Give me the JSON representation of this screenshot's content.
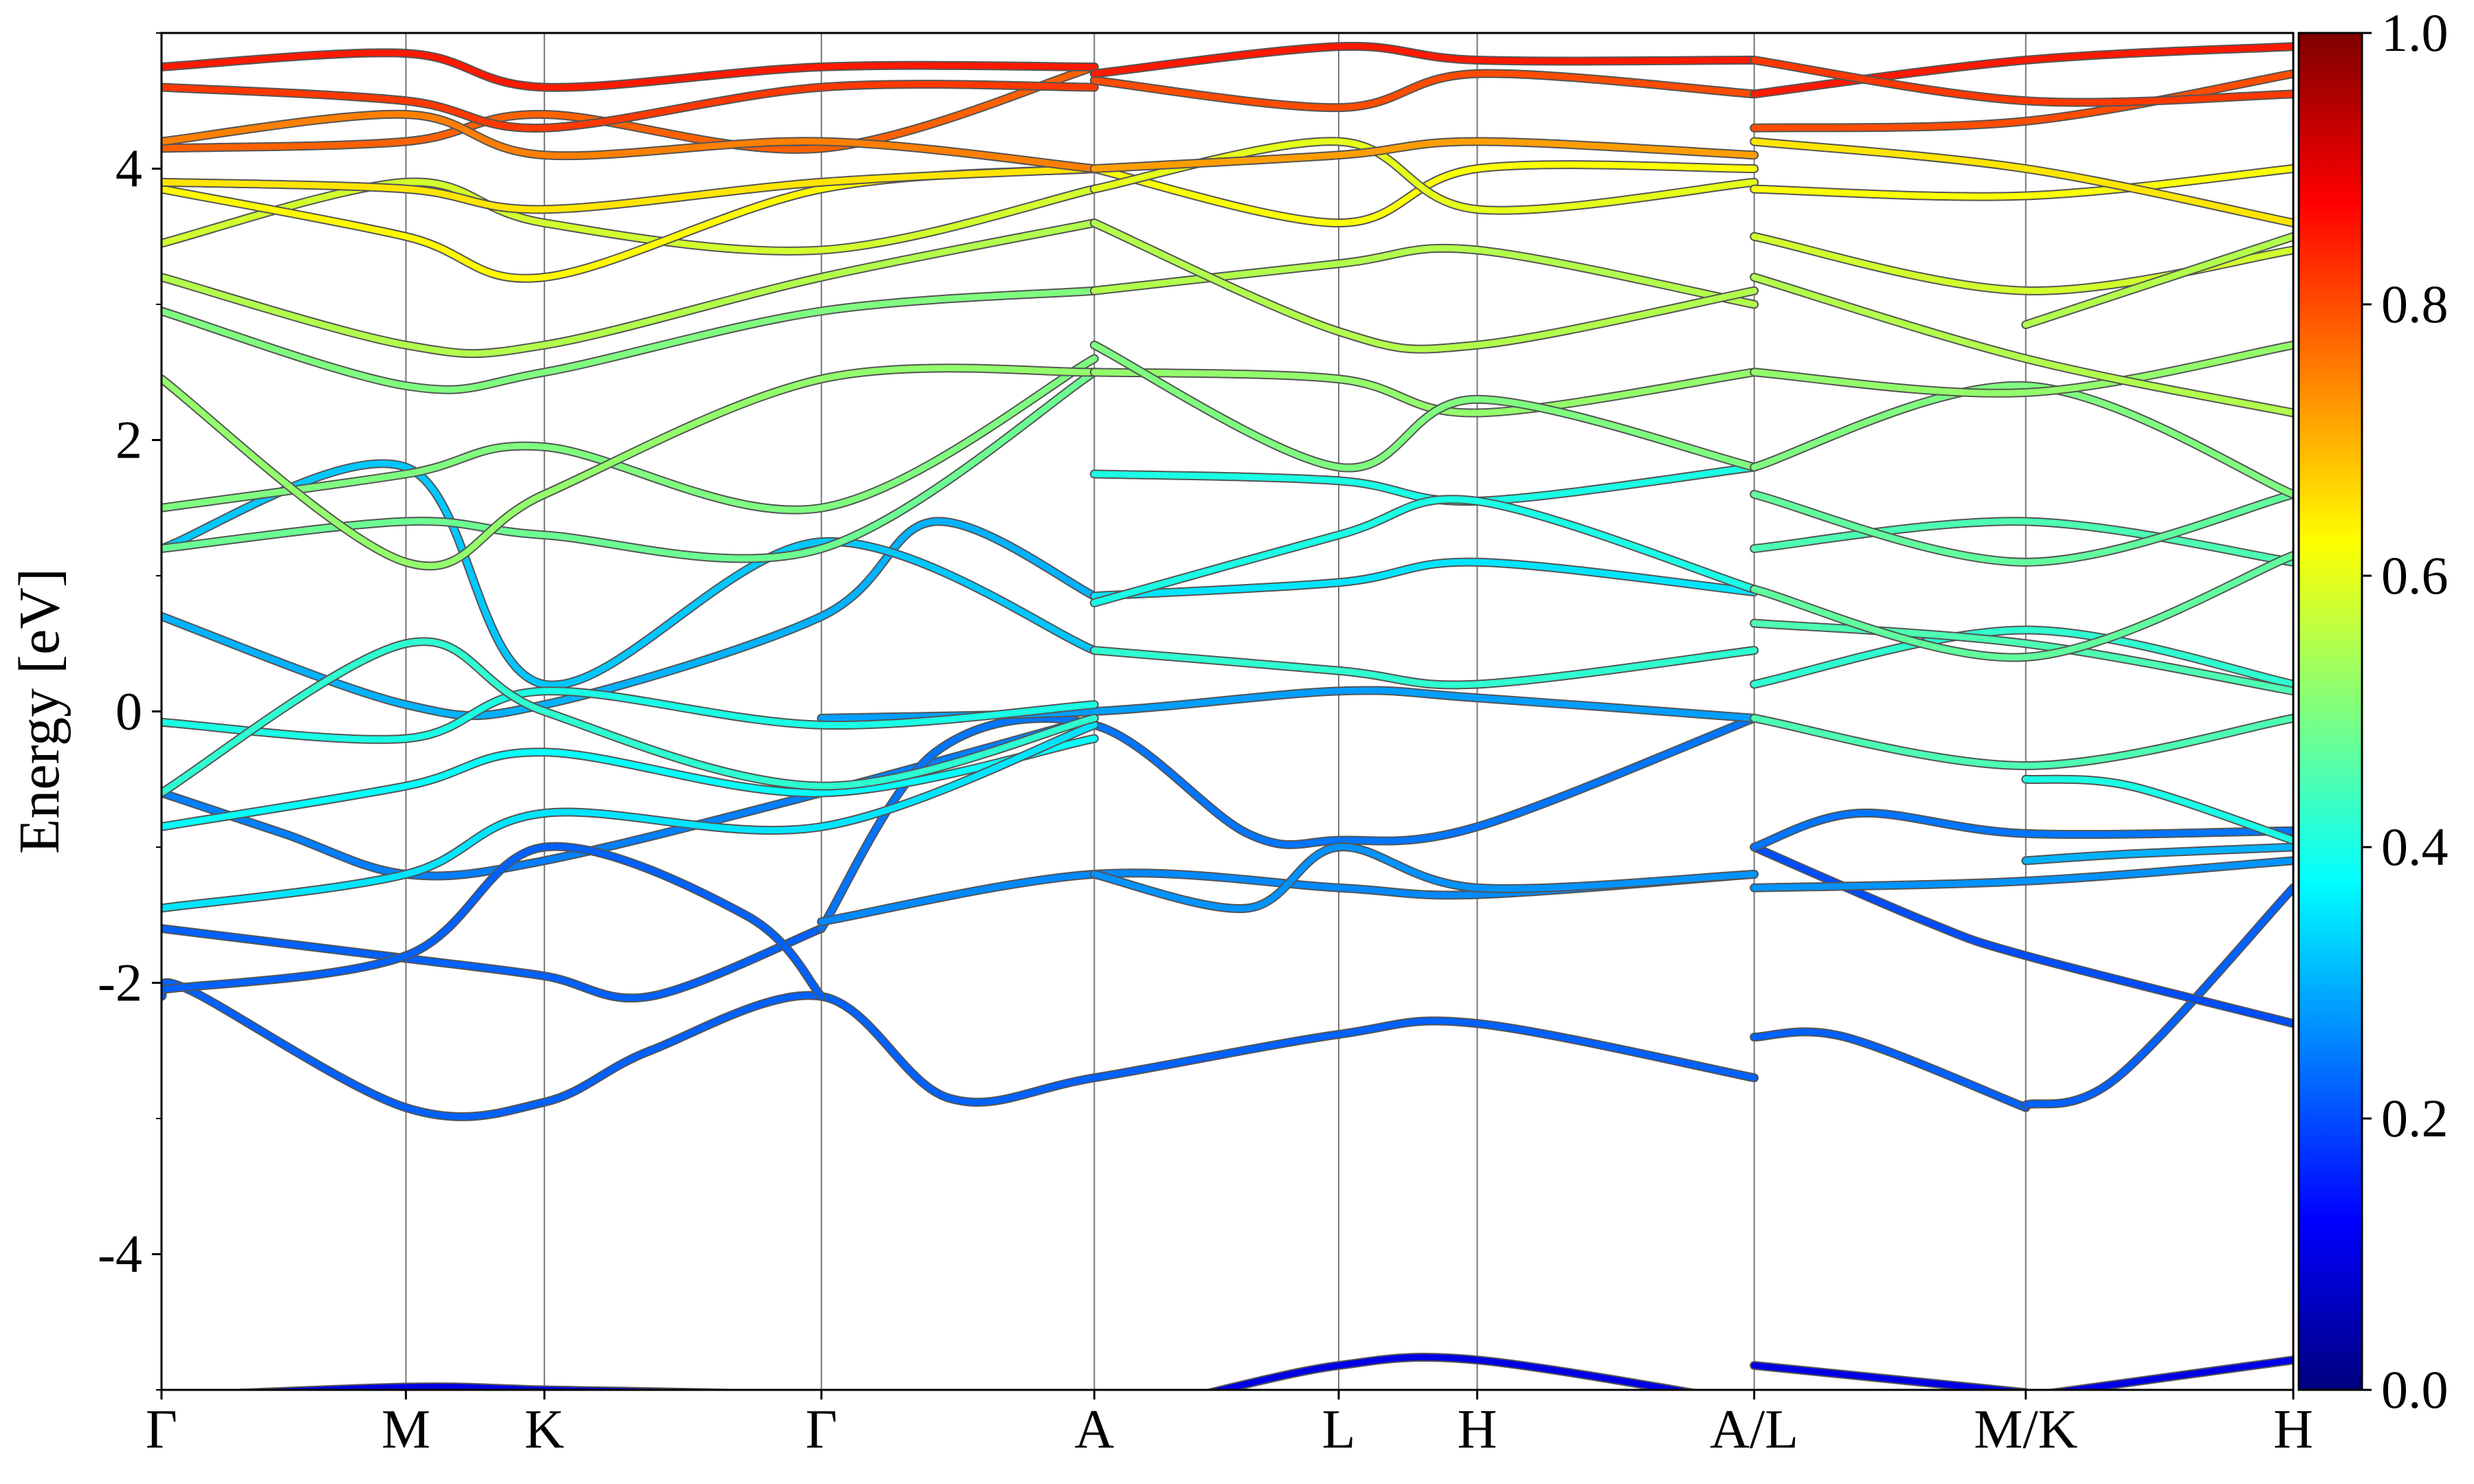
{
  "chart_data": {
    "type": "line",
    "title": "",
    "xlabel": "",
    "ylabel": "Energy [eV]",
    "ylim": [
      -5,
      5
    ],
    "grid": false,
    "yticks": [
      -4,
      -2,
      0,
      2,
      4
    ],
    "yticks_minor": [
      -5,
      -3,
      -1,
      1,
      3,
      5
    ],
    "ytick_labels": [
      "-4",
      "-2",
      "0",
      "2",
      "4"
    ],
    "xlim": [
      0,
      15.7
    ],
    "kpoints": [
      {
        "label": "Γ",
        "x": 0
      },
      {
        "label": "M",
        "x": 1.8
      },
      {
        "label": "K",
        "x": 2.82
      },
      {
        "label": "Γ",
        "x": 4.86
      },
      {
        "label": "A",
        "x": 6.87
      },
      {
        "label": "L",
        "x": 8.67
      },
      {
        "label": "H",
        "x": 9.69
      },
      {
        "label": "A/L",
        "x": 11.73
      },
      {
        "label": "M/K",
        "x": 13.73
      },
      {
        "label": "H",
        "x": 15.7
      }
    ],
    "colorbar": {
      "min": 0.0,
      "max": 1.0,
      "ticks": [
        0.0,
        0.2,
        0.4,
        0.6,
        0.8,
        1.0
      ],
      "tick_labels": [
        "0.0",
        "0.2",
        "0.4",
        "0.6",
        "0.8",
        "1.0"
      ],
      "colormap": "jet",
      "colors": [
        "#00007f",
        "#0000ff",
        "#007fff",
        "#00ffff",
        "#7fff7f",
        "#ffff00",
        "#ff7f00",
        "#ff0000",
        "#7f0000"
      ]
    },
    "series": [
      {
        "x": [
          0,
          1.8,
          2.82,
          4.86,
          6.87
        ],
        "y": [
          -5.05,
          -4.98,
          -5.0,
          -5.05,
          -5.2
        ],
        "c": 0.1
      },
      {
        "x": [
          7.6,
          8.67,
          9.69,
          11.73
        ],
        "y": [
          -5.05,
          -4.82,
          -4.78,
          -5.1
        ],
        "c": 0.1
      },
      {
        "x": [
          11.73,
          13.73
        ],
        "y": [
          -4.82,
          -5.02
        ],
        "c": 0.1
      },
      {
        "x": [
          13.73,
          15.7
        ],
        "y": [
          -5.05,
          -4.78
        ],
        "c": 0.1
      },
      {
        "x": [
          0,
          0.2,
          1.8,
          2.82,
          3.6,
          4.86,
          5.8,
          6.87,
          8.67,
          9.69,
          11.73
        ],
        "y": [
          -2.1,
          -2.05,
          -2.92,
          -2.88,
          -2.5,
          -2.1,
          -2.85,
          -2.7,
          -2.38,
          -2.3,
          -2.7
        ],
        "c": 0.22
      },
      {
        "x": [
          11.73,
          12.4,
          13.73
        ],
        "y": [
          -2.4,
          -2.4,
          -2.92
        ],
        "c": 0.22
      },
      {
        "x": [
          13.73,
          14.4,
          15.7
        ],
        "y": [
          -2.9,
          -2.7,
          -1.3
        ],
        "c": 0.22
      },
      {
        "x": [
          11.73,
          13.0,
          13.73,
          15.7
        ],
        "y": [
          -1.0,
          -1.55,
          -1.8,
          -2.3
        ],
        "c": 0.2
      },
      {
        "x": [
          0,
          1.8,
          2.82,
          3.6,
          4.86
        ],
        "y": [
          -1.6,
          -1.82,
          -1.95,
          -2.1,
          -1.6
        ],
        "c": 0.22
      },
      {
        "x": [
          0,
          0.9,
          1.8,
          2.82,
          4.86,
          6.87
        ],
        "y": [
          -0.6,
          -0.9,
          -1.2,
          -1.1,
          -0.6,
          -0.05
        ],
        "c": 0.25
      },
      {
        "x": [
          0,
          1.8,
          2.82,
          4.3,
          4.86
        ],
        "y": [
          -2.05,
          -1.8,
          -1.0,
          -1.5,
          -2.1
        ],
        "c": 0.22
      },
      {
        "x": [
          4.86,
          5.7,
          6.87,
          8.0,
          8.67,
          9.69,
          11.73
        ],
        "y": [
          -1.6,
          -0.3,
          -0.1,
          -0.9,
          -0.95,
          -0.85,
          -0.05
        ],
        "c": 0.24
      },
      {
        "x": [
          4.86,
          6.87,
          8.67,
          9.69,
          11.73
        ],
        "y": [
          -1.55,
          -1.2,
          -1.3,
          -1.35,
          -1.2
        ],
        "c": 0.26
      },
      {
        "x": [
          6.87,
          8.0,
          8.67,
          9.69,
          11.73
        ],
        "y": [
          -1.2,
          -1.45,
          -1.0,
          -1.3,
          -1.2
        ],
        "c": 0.27
      },
      {
        "x": [
          11.73,
          12.5,
          13.73,
          15.7
        ],
        "y": [
          -1.0,
          -0.75,
          -0.9,
          -0.88
        ],
        "c": 0.24
      },
      {
        "x": [
          11.73,
          13.73,
          15.7
        ],
        "y": [
          -1.3,
          -1.25,
          -1.1
        ],
        "c": 0.27
      },
      {
        "x": [
          13.73,
          14.5,
          15.7
        ],
        "y": [
          -1.1,
          -1.05,
          -1.0
        ],
        "c": 0.3
      },
      {
        "x": [
          0,
          1.8,
          2.82,
          4.86,
          5.7,
          6.87
        ],
        "y": [
          0.7,
          0.05,
          0.05,
          0.7,
          1.4,
          0.85
        ],
        "c": 0.3
      },
      {
        "x": [
          0,
          1.8,
          2.82,
          4.86,
          6.87
        ],
        "y": [
          1.2,
          1.8,
          0.2,
          1.25,
          0.45
        ],
        "c": 0.32
      },
      {
        "x": [
          6.87,
          8.67,
          9.69,
          11.73
        ],
        "y": [
          0.85,
          0.95,
          1.1,
          0.88
        ],
        "c": 0.35
      },
      {
        "x": [
          4.86,
          6.87,
          8.67,
          9.69,
          11.73
        ],
        "y": [
          -0.05,
          0.0,
          0.15,
          0.1,
          -0.05
        ],
        "c": 0.28
      },
      {
        "x": [
          0,
          1.8,
          2.82,
          4.86,
          6.87
        ],
        "y": [
          -0.85,
          -0.55,
          -0.3,
          -0.6,
          -0.2
        ],
        "c": 0.38
      },
      {
        "x": [
          0,
          1.8,
          2.82,
          4.86,
          6.87
        ],
        "y": [
          -1.45,
          -1.2,
          -0.75,
          -0.85,
          -0.1
        ],
        "c": 0.35
      },
      {
        "x": [
          0,
          1.8,
          2.82,
          4.86,
          6.87
        ],
        "y": [
          -0.08,
          -0.2,
          0.15,
          -0.1,
          0.05
        ],
        "c": 0.4
      },
      {
        "x": [
          0,
          1.8,
          2.82,
          4.86,
          6.87
        ],
        "y": [
          -0.6,
          0.5,
          0.0,
          -0.55,
          -0.05
        ],
        "c": 0.42
      },
      {
        "x": [
          6.87,
          8.67,
          9.69,
          11.73
        ],
        "y": [
          0.45,
          0.3,
          0.2,
          0.45
        ],
        "c": 0.42
      },
      {
        "x": [
          6.87,
          8.67,
          9.69,
          11.73
        ],
        "y": [
          1.75,
          1.7,
          1.55,
          1.8
        ],
        "c": 0.4
      },
      {
        "x": [
          6.87,
          8.67,
          9.69,
          11.73
        ],
        "y": [
          0.8,
          1.3,
          1.55,
          0.9
        ],
        "c": 0.4
      },
      {
        "x": [
          11.73,
          13.73,
          15.7
        ],
        "y": [
          0.2,
          0.6,
          0.2
        ],
        "c": 0.42
      },
      {
        "x": [
          11.73,
          13.73,
          15.7
        ],
        "y": [
          0.65,
          0.5,
          0.15
        ],
        "c": 0.45
      },
      {
        "x": [
          11.73,
          13.73,
          15.7
        ],
        "y": [
          -0.05,
          -0.4,
          -0.05
        ],
        "c": 0.45
      },
      {
        "x": [
          13.73,
          14.5,
          15.7
        ],
        "y": [
          -0.5,
          -0.55,
          -0.95
        ],
        "c": 0.4
      },
      {
        "x": [
          11.73,
          13.73,
          15.7
        ],
        "y": [
          1.2,
          1.4,
          1.1
        ],
        "c": 0.45
      },
      {
        "x": [
          11.73,
          13.73,
          15.7
        ],
        "y": [
          1.6,
          1.1,
          1.6
        ],
        "c": 0.47
      },
      {
        "x": [
          11.73,
          13.73,
          15.7
        ],
        "y": [
          0.9,
          0.4,
          1.15
        ],
        "c": 0.47
      },
      {
        "x": [
          0,
          1.8,
          2.82,
          4.86,
          6.87
        ],
        "y": [
          1.5,
          1.75,
          1.95,
          1.5,
          2.6
        ],
        "c": 0.5
      },
      {
        "x": [
          0,
          1.8,
          2.82,
          4.86,
          6.87
        ],
        "y": [
          1.2,
          1.4,
          1.3,
          1.2,
          2.5
        ],
        "c": 0.48
      },
      {
        "x": [
          0,
          1.8,
          2.82,
          4.86,
          6.87
        ],
        "y": [
          2.45,
          1.1,
          1.6,
          2.45,
          2.5
        ],
        "c": 0.52
      },
      {
        "x": [
          0,
          1.8,
          2.82,
          4.86,
          6.87
        ],
        "y": [
          2.95,
          2.4,
          2.5,
          2.95,
          3.1
        ],
        "c": 0.5
      },
      {
        "x": [
          0,
          1.8,
          2.82,
          4.86,
          6.87
        ],
        "y": [
          3.2,
          2.7,
          2.7,
          3.2,
          3.6
        ],
        "c": 0.55
      },
      {
        "x": [
          6.87,
          8.67,
          9.69,
          11.73
        ],
        "y": [
          2.5,
          2.45,
          2.2,
          2.5
        ],
        "c": 0.52
      },
      {
        "x": [
          6.87,
          8.67,
          9.69,
          11.73
        ],
        "y": [
          2.7,
          1.8,
          2.3,
          1.8
        ],
        "c": 0.5
      },
      {
        "x": [
          6.87,
          8.67,
          9.69,
          11.73
        ],
        "y": [
          3.1,
          3.3,
          3.4,
          3.0
        ],
        "c": 0.55
      },
      {
        "x": [
          6.87,
          8.67,
          9.69,
          11.73
        ],
        "y": [
          3.6,
          2.8,
          2.7,
          3.1
        ],
        "c": 0.55
      },
      {
        "x": [
          11.73,
          13.73,
          15.7
        ],
        "y": [
          1.8,
          2.4,
          1.6
        ],
        "c": 0.5
      },
      {
        "x": [
          11.73,
          13.73,
          15.7
        ],
        "y": [
          2.5,
          2.35,
          2.7
        ],
        "c": 0.52
      },
      {
        "x": [
          11.73,
          13.73,
          15.7
        ],
        "y": [
          3.2,
          2.6,
          2.2
        ],
        "c": 0.55
      },
      {
        "x": [
          11.73,
          13.73,
          15.7
        ],
        "y": [
          3.5,
          3.1,
          3.4
        ],
        "c": 0.58
      },
      {
        "x": [
          13.73,
          15.7
        ],
        "y": [
          2.85,
          3.5
        ],
        "c": 0.55
      },
      {
        "x": [
          0,
          1.8,
          2.82,
          4.86,
          6.87
        ],
        "y": [
          3.45,
          3.9,
          3.6,
          3.4,
          3.85
        ],
        "c": 0.58
      },
      {
        "x": [
          0,
          1.8,
          2.82,
          4.86,
          6.87
        ],
        "y": [
          3.85,
          3.5,
          3.2,
          3.85,
          4.0
        ],
        "c": 0.63
      },
      {
        "x": [
          0,
          1.8,
          2.82,
          4.86,
          6.87
        ],
        "y": [
          3.9,
          3.85,
          3.7,
          3.9,
          4.0
        ],
        "c": 0.65
      },
      {
        "x": [
          6.87,
          8.67,
          9.69,
          11.73
        ],
        "y": [
          4.0,
          3.6,
          4.0,
          4.0
        ],
        "c": 0.62
      },
      {
        "x": [
          6.87,
          8.67,
          9.69,
          11.73
        ],
        "y": [
          3.85,
          4.2,
          3.7,
          3.9
        ],
        "c": 0.6
      },
      {
        "x": [
          11.73,
          13.73,
          15.7
        ],
        "y": [
          3.85,
          3.8,
          4.0
        ],
        "c": 0.62
      },
      {
        "x": [
          11.73,
          13.73,
          15.7
        ],
        "y": [
          4.2,
          4.0,
          3.6
        ],
        "c": 0.65
      },
      {
        "x": [
          0,
          1.8,
          2.82,
          4.86,
          6.87
        ],
        "y": [
          4.15,
          4.2,
          4.4,
          4.15,
          4.75
        ],
        "c": 0.78
      },
      {
        "x": [
          0,
          1.8,
          2.82,
          4.86,
          6.87
        ],
        "y": [
          4.6,
          4.5,
          4.3,
          4.6,
          4.6
        ],
        "c": 0.82
      },
      {
        "x": [
          0,
          1.8,
          2.82,
          4.86,
          6.87
        ],
        "y": [
          4.75,
          4.85,
          4.6,
          4.75,
          4.75
        ],
        "c": 0.85
      },
      {
        "x": [
          0,
          1.8,
          2.82,
          4.86,
          6.87
        ],
        "y": [
          4.2,
          4.4,
          4.1,
          4.2,
          4.0
        ],
        "c": 0.75
      },
      {
        "x": [
          6.87,
          8.67,
          9.69,
          11.73
        ],
        "y": [
          4.65,
          4.45,
          4.7,
          4.55
        ],
        "c": 0.8
      },
      {
        "x": [
          6.87,
          8.67,
          9.69,
          11.73
        ],
        "y": [
          4.0,
          4.1,
          4.2,
          4.1
        ],
        "c": 0.72
      },
      {
        "x": [
          6.87,
          8.67,
          9.69,
          11.73
        ],
        "y": [
          4.7,
          4.9,
          4.8,
          4.8
        ],
        "c": 0.85
      },
      {
        "x": [
          11.73,
          13.73,
          15.7
        ],
        "y": [
          4.3,
          4.35,
          4.7
        ],
        "c": 0.8
      },
      {
        "x": [
          11.73,
          13.73,
          15.7
        ],
        "y": [
          4.55,
          4.8,
          4.9
        ],
        "c": 0.85
      },
      {
        "x": [
          11.73,
          13.73,
          15.7
        ],
        "y": [
          4.8,
          4.5,
          4.55
        ],
        "c": 0.82
      }
    ]
  }
}
